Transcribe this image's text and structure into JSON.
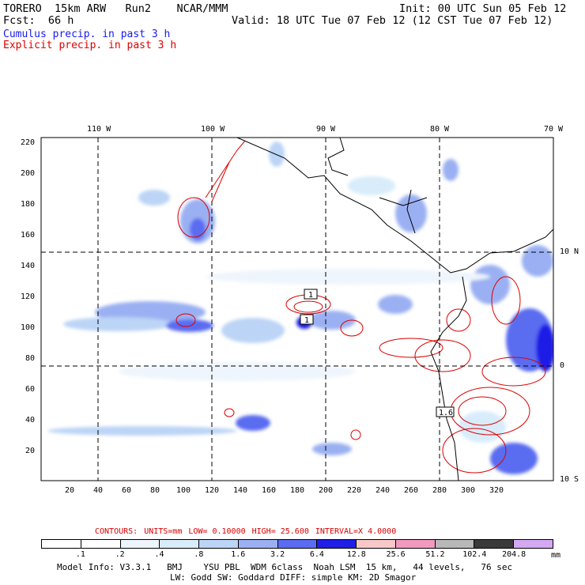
{
  "header": {
    "model": "TORERO",
    "resolution": "15km ARW",
    "run": "Run2",
    "org": "NCAR/MMM",
    "init": "Init: 00 UTC Sun 05 Feb 12",
    "fcst_label": "Fcst:",
    "fcst_value": "66 h",
    "valid": "Valid: 18 UTC Tue 07 Feb 12 (12 CST Tue 07 Feb 12)"
  },
  "legend": {
    "cumulus": "Cumulus precip. in past 3 h",
    "explicit": "Explicit precip. in past 3 h",
    "cumulus_color": "#1a1aee",
    "explicit_color": "#dd0000"
  },
  "map": {
    "top_lon_labels": [
      "110 W",
      "100 W",
      "90 W",
      "80 W",
      "70 W"
    ],
    "right_lat_labels": [
      "10 N",
      "0",
      "10 S"
    ],
    "y_ticks": [
      "220",
      "200",
      "180",
      "160",
      "140",
      "120",
      "100",
      "80",
      "60",
      "40",
      "20"
    ],
    "x_ticks": [
      "20",
      "40",
      "60",
      "80",
      "100",
      "120",
      "140",
      "160",
      "180",
      "200",
      "220",
      "240",
      "260",
      "280",
      "300",
      "320"
    ],
    "box_labels": [
      "1",
      "1",
      "1.6"
    ]
  },
  "contours": {
    "label": "CONTOURS:",
    "units": "UNITS=mm",
    "low": "LOW= 0.10000",
    "high": "HIGH= 25.600",
    "interval": "INTERVAL=X 4.0000"
  },
  "colorbar": {
    "labels": [
      ".1",
      ".2",
      ".4",
      ".8",
      "1.6",
      "3.2",
      "6.4",
      "12.8",
      "25.6",
      "51.2",
      "102.4",
      "204.8"
    ],
    "colors": [
      "#ffffff",
      "#ffffff",
      "#eef5fc",
      "#d8ecfa",
      "#bcd4f6",
      "#9ab0f2",
      "#5a6cf0",
      "#1f1fe6",
      "#f8c8c8",
      "#f09ac0",
      "#b8b8b8",
      "#3a3a3a",
      "#d4a8f2"
    ],
    "unit": "mm"
  },
  "footer": {
    "line1": "Model Info: V3.3.1   BMJ    YSU PBL  WDM 6class  Noah LSM  15 km,   44 levels,   76 sec",
    "line2": "LW: Godd SW: Goddard DIFF: simple KM: 2D Smagor"
  }
}
